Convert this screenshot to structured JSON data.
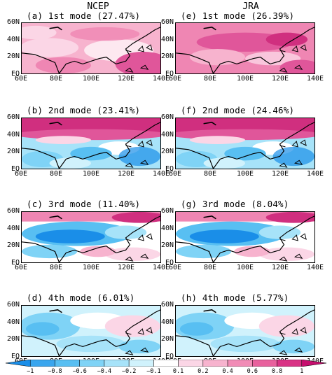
{
  "columns": [
    "NCEP",
    "JRA"
  ],
  "panels": [
    {
      "title": "(a) 1st mode (27.47%)",
      "pattern": "pos-mid"
    },
    {
      "title": "(e) 1st mode (26.39%)",
      "pattern": "pos-strong"
    },
    {
      "title": "(b) 2nd mode (23.41%)",
      "pattern": "dipole-ns"
    },
    {
      "title": "(f) 2nd mode (24.46%)",
      "pattern": "dipole-ns"
    },
    {
      "title": "(c) 3rd mode (11.40%)",
      "pattern": "neg-center"
    },
    {
      "title": "(g) 3rd mode (8.04%)",
      "pattern": "neg-center"
    },
    {
      "title": "(d) 4th mode (6.01%)",
      "pattern": "neg-west"
    },
    {
      "title": "(h) 4th mode (5.77%)",
      "pattern": "neg-west"
    }
  ],
  "y_ticks": [
    "60N",
    "40N",
    "20N",
    "EQ"
  ],
  "x_ticks": [
    "60E",
    "80E",
    "100E",
    "120E",
    "140E"
  ],
  "colorbar": {
    "labels": [
      "−1",
      "−0.8",
      "−0.6",
      "−0.4",
      "−0.2",
      "−0.1",
      "0.1",
      "0.2",
      "0.4",
      "0.6",
      "0.8",
      "1"
    ],
    "colors": [
      "#1a8ee8",
      "#3aa6ee",
      "#58bff2",
      "#7fd3f6",
      "#a7e3f9",
      "#d0f2fc",
      "#ffffff",
      "#fbd6e6",
      "#f7b3ce",
      "#f18cb6",
      "#e8619d",
      "#d93385",
      "#c60f6e"
    ]
  }
}
